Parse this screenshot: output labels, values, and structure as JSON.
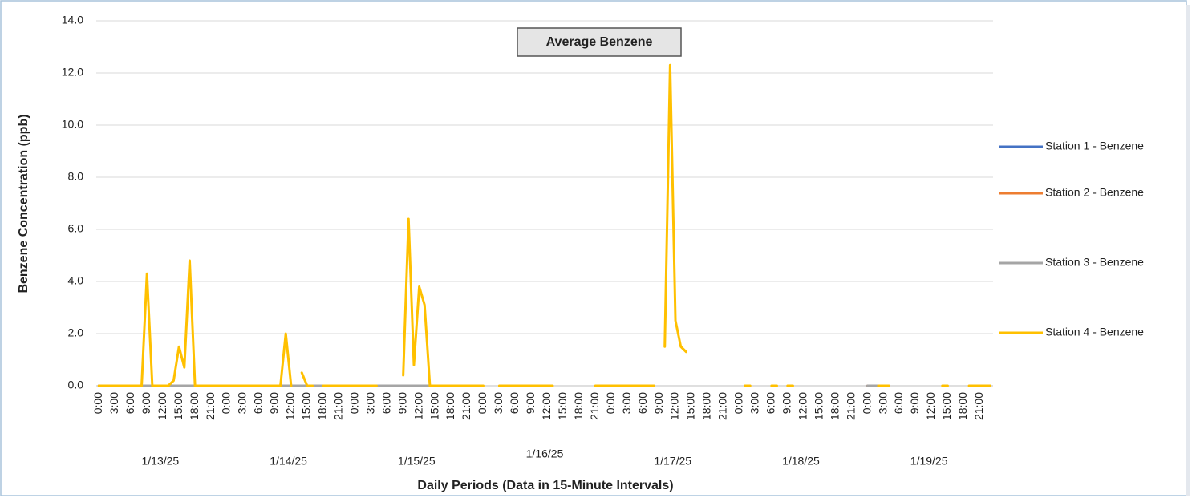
{
  "chart_data": {
    "type": "line",
    "title": "Average Benzene",
    "x_label": "Daily Periods (Data in 15-Minute Intervals)",
    "y_label": "Benzene Concentration (ppb)",
    "date_labels": [
      "1/13/25",
      "1/14/25",
      "1/15/25",
      "1/16/25",
      "1/17/25",
      "1/18/25",
      "1/19/25"
    ],
    "categories": [
      "0:00",
      null,
      null,
      "3:00",
      null,
      null,
      "6:00",
      null,
      null,
      "9:00",
      null,
      null,
      "12:00",
      null,
      null,
      "15:00",
      null,
      null,
      "18:00",
      null,
      null,
      "21:00",
      null,
      null,
      "0:00",
      null,
      null,
      "3:00",
      null,
      null,
      "6:00",
      null,
      null,
      "9:00",
      null,
      null,
      "12:00",
      null,
      null,
      "15:00",
      null,
      null,
      "18:00",
      null,
      null,
      "21:00",
      null,
      null,
      "0:00",
      null,
      null,
      "3:00",
      null,
      null,
      "6:00",
      null,
      null,
      "9:00",
      null,
      null,
      "12:00",
      null,
      null,
      "15:00",
      null,
      null,
      "18:00",
      null,
      null,
      "21:00",
      null,
      null,
      "0:00",
      null,
      null,
      "3:00",
      null,
      null,
      "6:00",
      null,
      null,
      "9:00",
      null,
      null,
      "12:00",
      null,
      null,
      "15:00",
      null,
      null,
      "18:00",
      null,
      null,
      "21:00",
      null,
      null,
      "0:00",
      null,
      null,
      "3:00",
      null,
      null,
      "6:00",
      null,
      null,
      "9:00",
      null,
      null,
      "12:00",
      null,
      null,
      "15:00",
      null,
      null,
      "18:00",
      null,
      null,
      "21:00",
      null,
      null,
      "0:00",
      null,
      null,
      "3:00",
      null,
      null,
      "6:00",
      null,
      null,
      "9:00",
      null,
      null,
      "12:00",
      null,
      null,
      "15:00",
      null,
      null,
      "18:00",
      null,
      null,
      "21:00",
      null,
      null,
      "0:00",
      null,
      null,
      "3:00",
      null,
      null,
      "6:00",
      null,
      null,
      "9:00",
      null,
      null,
      "12:00",
      null,
      null,
      "15:00",
      null,
      null,
      "18:00",
      null,
      null,
      "21:00",
      null,
      null
    ],
    "ylim": [
      0,
      14
    ],
    "yticks": [
      {
        "value": 0,
        "label": "0.0"
      },
      {
        "value": 2,
        "label": "2.0"
      },
      {
        "value": 4,
        "label": "4.0"
      },
      {
        "value": 6,
        "label": "6.0"
      },
      {
        "value": 8,
        "label": "8.0"
      },
      {
        "value": 10,
        "label": "10.0"
      },
      {
        "value": 12,
        "label": "12.0"
      },
      {
        "value": 14,
        "label": "14.0"
      }
    ],
    "grid": true,
    "legend": "right",
    "series": [
      {
        "name": "Station 1 - Benzene",
        "color": "#4472c4",
        "values": [
          0,
          0,
          0,
          0,
          0,
          0,
          0,
          0,
          0,
          0,
          0,
          0,
          0,
          0,
          0,
          0,
          0,
          0,
          0,
          0,
          0,
          0,
          0,
          0,
          0,
          0,
          0,
          0,
          0,
          0,
          0,
          0,
          0,
          0,
          0,
          0,
          0,
          0,
          0,
          0,
          0,
          0,
          0,
          0,
          0,
          0,
          0,
          0,
          0,
          0,
          0,
          0,
          0,
          0,
          0,
          0,
          0,
          0,
          0,
          0,
          0,
          0,
          0,
          0,
          null,
          null,
          null,
          null,
          null,
          null,
          null,
          null,
          null,
          null,
          null,
          null,
          null,
          null,
          null,
          null,
          null,
          null,
          null,
          null,
          null,
          null,
          null,
          null,
          null,
          null,
          null,
          null,
          null,
          null,
          null,
          null,
          null,
          null,
          null,
          null,
          null,
          null,
          null,
          null,
          null,
          null,
          null,
          null,
          null,
          null,
          null,
          null,
          null,
          null,
          null,
          null,
          null,
          null,
          null,
          null,
          null,
          null,
          null,
          null,
          null,
          null,
          null,
          null,
          null,
          null,
          null,
          null,
          null,
          null,
          null,
          null,
          null,
          null,
          null,
          null,
          null,
          null,
          null,
          null,
          0,
          0,
          0,
          null,
          null,
          null,
          null,
          null,
          null,
          null,
          null,
          null,
          null,
          null,
          null,
          null,
          null,
          null,
          null,
          null,
          null,
          null,
          null,
          null
        ]
      },
      {
        "name": "Station 2 - Benzene",
        "color": "#ed7d31",
        "values": [
          0,
          0,
          0,
          0,
          0,
          0,
          0,
          0,
          0,
          0,
          0,
          0,
          0,
          0,
          0,
          0,
          0,
          0,
          0,
          0,
          0,
          0,
          0,
          0,
          0,
          0,
          0,
          0,
          0,
          0,
          0,
          0,
          0,
          0,
          0,
          0,
          0,
          0,
          0,
          0,
          0,
          0,
          0,
          0,
          0,
          0,
          0,
          0,
          0,
          0,
          0,
          0,
          0,
          0,
          0,
          0,
          0,
          0,
          0,
          0,
          0,
          0,
          0,
          0,
          null,
          null,
          null,
          null,
          null,
          null,
          null,
          null,
          null,
          null,
          null,
          null,
          null,
          null,
          null,
          null,
          null,
          null,
          null,
          null,
          null,
          null,
          null,
          null,
          null,
          null,
          null,
          null,
          null,
          null,
          null,
          null,
          null,
          null,
          null,
          null,
          null,
          null,
          null,
          null,
          null,
          null,
          null,
          null,
          null,
          null,
          null,
          null,
          null,
          null,
          null,
          null,
          null,
          null,
          null,
          null,
          null,
          null,
          null,
          null,
          null,
          null,
          null,
          null,
          null,
          null,
          null,
          null,
          null,
          null,
          null,
          null,
          null,
          null,
          null,
          null,
          null,
          null,
          null,
          null,
          0,
          0,
          0,
          null,
          null,
          null,
          null,
          null,
          null,
          null,
          null,
          null,
          null,
          null,
          null,
          null,
          null,
          null,
          null,
          null,
          null,
          null,
          null,
          null
        ]
      },
      {
        "name": "Station 3 - Benzene",
        "color": "#a5a5a5",
        "values": [
          0,
          0,
          0,
          0,
          0,
          0,
          0,
          0,
          0,
          0,
          0,
          0,
          0,
          0,
          0,
          0,
          0,
          0,
          0,
          0,
          0,
          0,
          0,
          0,
          0,
          0,
          0,
          0,
          0,
          0,
          0,
          0,
          0,
          0,
          0,
          0,
          0,
          0,
          0,
          0,
          0,
          0,
          0,
          0,
          0,
          0,
          0,
          0,
          0,
          0,
          0,
          0,
          0,
          0,
          0,
          0,
          0,
          0,
          0,
          0,
          0,
          0,
          0,
          0,
          null,
          null,
          null,
          null,
          null,
          null,
          null,
          null,
          null,
          null,
          null,
          null,
          null,
          null,
          null,
          null,
          null,
          null,
          null,
          null,
          null,
          null,
          null,
          null,
          null,
          null,
          null,
          null,
          null,
          null,
          null,
          null,
          null,
          null,
          null,
          null,
          null,
          null,
          null,
          null,
          null,
          null,
          null,
          null,
          null,
          null,
          null,
          null,
          null,
          null,
          null,
          null,
          null,
          null,
          null,
          null,
          null,
          null,
          null,
          null,
          null,
          null,
          null,
          null,
          null,
          null,
          null,
          null,
          null,
          null,
          null,
          null,
          null,
          null,
          null,
          null,
          null,
          null,
          null,
          null,
          0,
          0,
          0,
          null,
          null,
          null,
          null,
          null,
          null,
          null,
          null,
          null,
          null,
          null,
          null,
          null,
          null,
          null,
          null,
          null,
          null,
          null,
          null,
          null
        ]
      },
      {
        "name": "Station 4 - Benzene",
        "color": "#ffc000",
        "values": [
          0,
          0,
          0,
          0,
          0,
          0,
          0,
          0,
          0,
          4.3,
          0,
          0,
          0,
          0,
          0.2,
          1.5,
          0.7,
          4.8,
          0,
          0,
          0,
          0,
          0,
          0,
          0,
          0,
          0,
          0,
          0,
          0,
          0,
          0,
          0,
          0,
          0,
          2,
          0,
          null,
          0.5,
          0,
          0,
          null,
          0,
          0,
          0,
          0,
          0,
          0,
          0,
          0,
          0,
          0,
          0,
          null,
          null,
          null,
          null,
          0.4,
          6.4,
          0.8,
          3.8,
          3.1,
          0,
          0,
          0,
          0,
          0,
          0,
          0,
          0,
          0,
          0,
          0,
          null,
          null,
          0,
          0,
          0,
          0,
          0,
          0,
          0,
          0,
          0,
          0,
          0,
          null,
          null,
          null,
          null,
          null,
          0,
          null,
          0,
          0,
          0,
          0,
          0,
          0,
          0,
          0,
          0,
          0,
          0,
          0,
          null,
          1.5,
          12.3,
          2.5,
          1.5,
          1.3,
          null,
          null,
          null,
          null,
          null,
          null,
          null,
          null,
          null,
          null,
          0,
          0,
          null,
          0,
          null,
          0,
          0,
          null,
          0,
          0,
          null,
          null,
          null,
          null,
          null,
          null,
          null,
          null,
          null,
          null,
          0,
          null,
          null,
          null,
          null,
          0,
          0,
          0,
          null,
          null,
          null,
          null,
          null,
          null,
          null,
          null,
          null,
          0,
          0,
          null,
          0,
          null,
          0,
          0,
          0,
          0,
          0
        ]
      }
    ]
  }
}
